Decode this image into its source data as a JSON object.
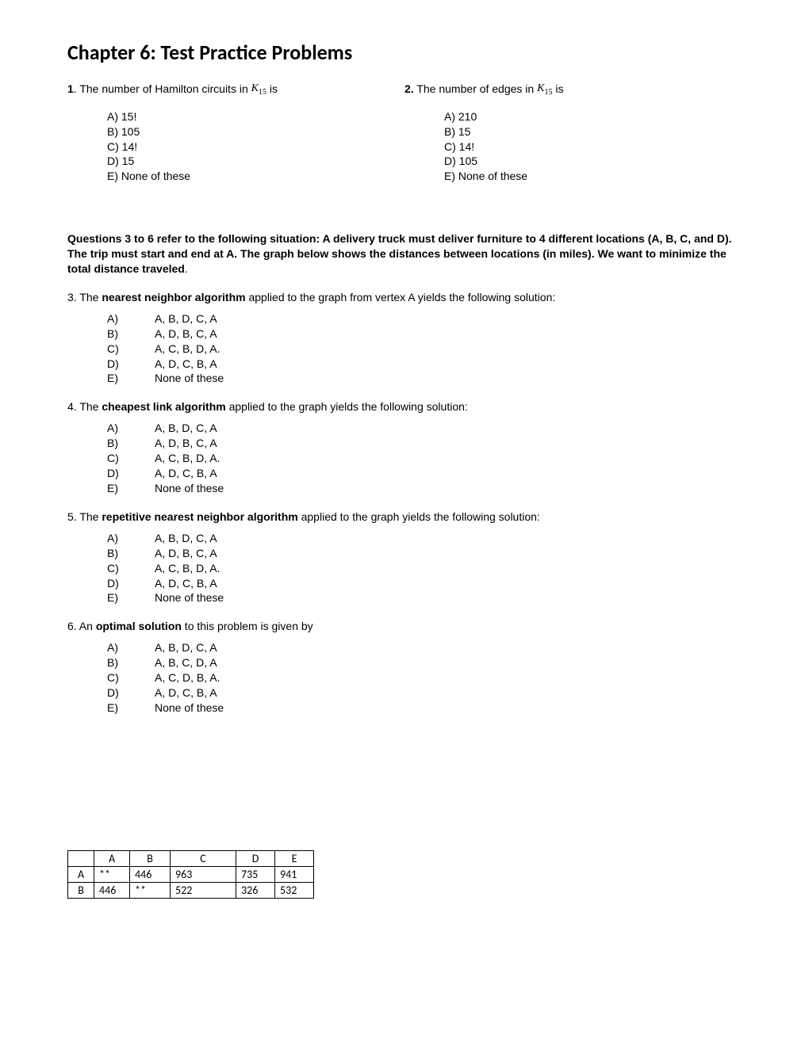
{
  "title": "Chapter 6: Test Practice Problems",
  "q1": {
    "num": "1",
    "prefix": ". The number of Hamilton circuits in ",
    "k": "K",
    "ksub": "15",
    "suffix": " is",
    "opts": {
      "A": "A) 15!",
      "B": "B) 105",
      "C": "C) 14!",
      "D": "D) 15",
      "E": "E) None of these"
    }
  },
  "q2": {
    "num": "2.",
    "prefix": "   The number of edges in ",
    "k": "K",
    "ksub": "15",
    "suffix": "  is",
    "opts": {
      "A": "A) 210",
      "B": "B) 15",
      "C": "C) 14!",
      "D": "D) 105",
      "E": "E) None of these"
    }
  },
  "intro": "Questions 3 to 6 refer to the following situation: A delivery truck must deliver furniture to 4 different locations (A, B, C, and D). The trip must start and end at A. The graph below shows the distances between locations (in miles). We want to minimize the total distance traveled",
  "intro_end": ".",
  "q3": {
    "pre": "3. The ",
    "bold": "nearest neighbor algorithm",
    "post": " applied to the graph from vertex A yields the following solution:",
    "opts": {
      "A": {
        "l": "A)",
        "v": "A, B, D, C, A"
      },
      "B": {
        "l": "B)",
        "v": "A, D, B, C, A"
      },
      "C": {
        "l": "C)",
        "v": "A, C, B, D, A."
      },
      "D": {
        "l": "D)",
        "v": "A, D, C, B, A"
      },
      "E": {
        "l": "E)",
        "v": "None of these"
      }
    }
  },
  "q4": {
    "pre": "4. The ",
    "bold": "cheapest link algorithm",
    "post": " applied to the graph yields the following solution:",
    "opts": {
      "A": {
        "l": "A)",
        "v": "A, B, D, C, A"
      },
      "B": {
        "l": "B)",
        "v": "A, D, B, C, A"
      },
      "C": {
        "l": "C)",
        "v": "A, C, B, D, A."
      },
      "D": {
        "l": "D)",
        "v": "A, D, C, B, A"
      },
      "E": {
        "l": "E)",
        "v": "None of these"
      }
    }
  },
  "q5": {
    "pre": "5. The ",
    "bold": "repetitive nearest neighbor algorithm",
    "post": " applied to the graph yields the following solution:",
    "opts": {
      "A": {
        "l": "A)",
        "v": "A, B, D, C, A"
      },
      "B": {
        "l": "B)",
        "v": "A, D, B, C, A"
      },
      "C": {
        "l": "C)",
        "v": "A, C, B, D, A."
      },
      "D": {
        "l": "D)",
        "v": "A, D, C, B, A"
      },
      "E": {
        "l": "E)",
        "v": "None of these"
      }
    }
  },
  "q6": {
    "pre": "6.  An ",
    "bold": "optimal solution",
    "post": " to this problem is given by",
    "opts": {
      "A": {
        "l": "A)",
        "v": "A, B, D, C, A"
      },
      "B": {
        "l": "B)",
        "v": "A, B, C, D, A"
      },
      "C": {
        "l": "C)",
        "v": "A, C, D, B, A."
      },
      "D": {
        "l": "D)",
        "v": "A, D, C, B, A"
      },
      "E": {
        "l": "E)",
        "v": "None of these"
      }
    }
  },
  "table": {
    "headers": [
      "",
      "A",
      "B",
      "C",
      "D",
      "E"
    ],
    "rows": [
      {
        "h": "A",
        "cells": [
          "**",
          "446",
          "963",
          "735",
          "941"
        ]
      },
      {
        "h": "B",
        "cells": [
          "446",
          "**",
          "522",
          "326",
          "532"
        ]
      }
    ]
  }
}
